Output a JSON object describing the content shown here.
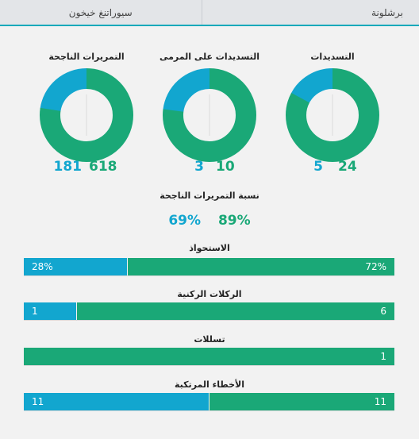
{
  "tabs": {
    "left": "سيوراتنغ خيخون",
    "right": "برشلونة"
  },
  "colors": {
    "home": "#1aa877",
    "away": "#12a6cf"
  },
  "donuts": [
    {
      "title": "التمريرات الناجحة",
      "home": 618,
      "away": 181
    },
    {
      "title": "التسديدات على المرمى",
      "home": 10,
      "away": 3
    },
    {
      "title": "التسديدات",
      "home": 24,
      "away": 5
    }
  ],
  "pass_accuracy": {
    "title": "نسبة التمريرات الناجحة",
    "away": "69%",
    "home": "89%"
  },
  "stats": [
    {
      "title": "الاستحواذ",
      "away": 28,
      "home": 72,
      "away_label": "28%",
      "home_label": "72%"
    },
    {
      "title": "الركلات الركنية",
      "away": 1,
      "home": 6,
      "away_label": "1",
      "home_label": "6"
    },
    {
      "title": "تسللات",
      "away": 0,
      "home": 1,
      "away_label": "",
      "home_label": "1"
    },
    {
      "title": "الأخطاء المرتكبة",
      "away": 11,
      "home": 11,
      "away_label": "11",
      "home_label": "11"
    }
  ]
}
